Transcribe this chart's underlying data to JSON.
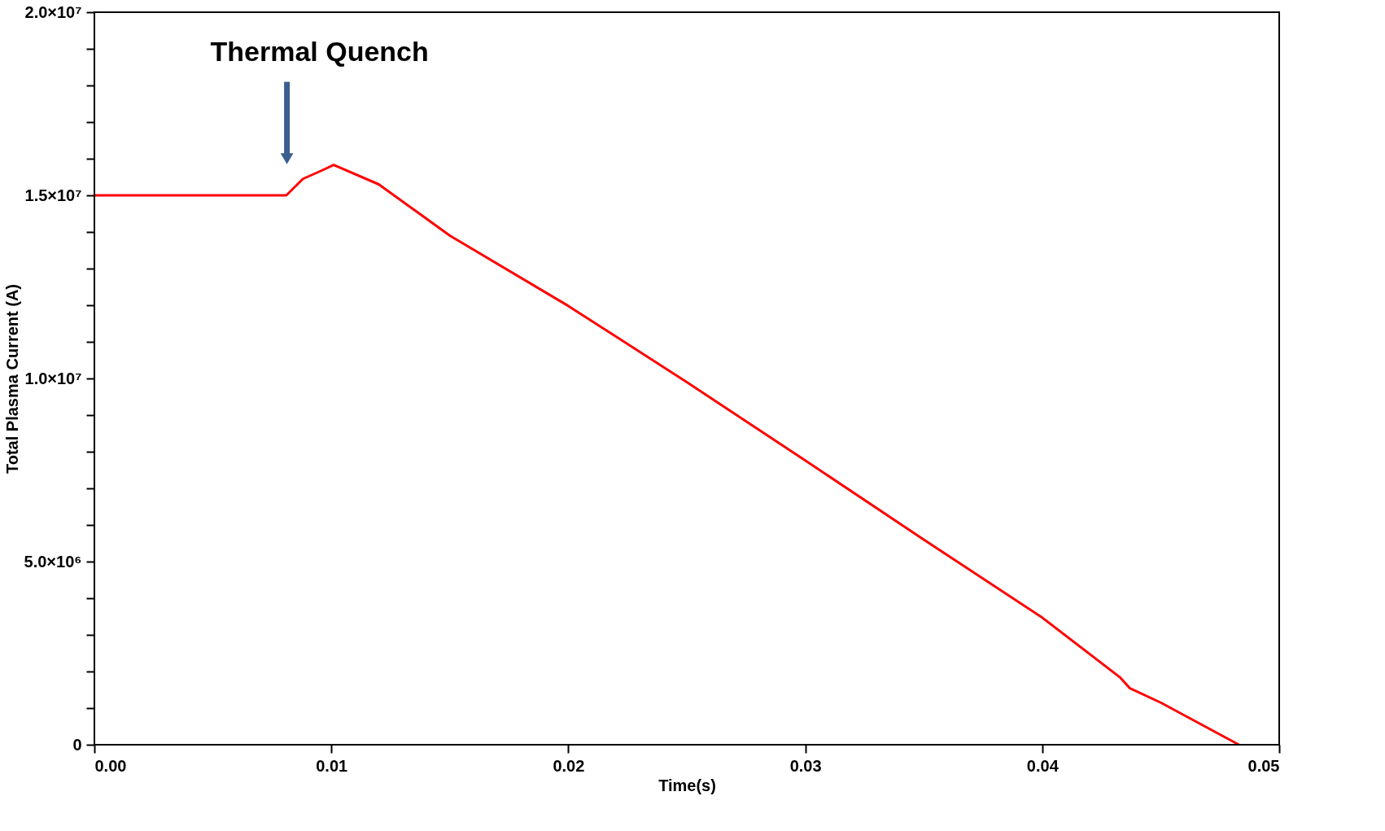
{
  "chart_data": {
    "type": "line",
    "xlabel": "Time(s)",
    "ylabel": "Total Plasma Current (A)",
    "x": [
      0,
      0.0081,
      0.0088,
      0.0095,
      0.0101,
      0.012,
      0.015,
      0.02,
      0.025,
      0.03,
      0.035,
      0.04,
      0.0433,
      0.0437,
      0.045,
      0.0483
    ],
    "series": [
      {
        "color": "#ff0000",
        "values": [
          15000000,
          15000000,
          15450000,
          15650000,
          15830000,
          15300000,
          13900000,
          11980000,
          9900000,
          7760000,
          5600000,
          3470000,
          1830000,
          1540000,
          1150000,
          0
        ]
      }
    ],
    "xlim": [
      0,
      0.05
    ],
    "ylim": [
      0,
      20000000
    ],
    "xticks": [
      {
        "value": 0,
        "label": "0.00"
      },
      {
        "value": 0.01,
        "label": "0.01"
      },
      {
        "value": 0.02,
        "label": "0.02"
      },
      {
        "value": 0.03,
        "label": "0.03"
      },
      {
        "value": 0.04,
        "label": "0.04"
      },
      {
        "value": 0.05,
        "label": "0.05"
      }
    ],
    "yticks": [
      0,
      {
        "value": 1000000,
        "label": null
      },
      {
        "value": 2000000,
        "label": null
      },
      {
        "value": 3000000,
        "label": null
      },
      {
        "value": 4000000,
        "label": null
      },
      {
        "value": 5000000,
        "label": "5.0×10⁶"
      },
      {
        "value": 6000000,
        "label": null
      },
      {
        "value": 7000000,
        "label": null
      },
      {
        "value": 8000000,
        "label": null
      },
      {
        "value": 9000000,
        "label": null
      },
      {
        "value": 10000000,
        "label": "1.0×10⁷"
      },
      {
        "value": 11000000,
        "label": null
      },
      {
        "value": 12000000,
        "label": null
      },
      {
        "value": 13000000,
        "label": null
      },
      {
        "value": 14000000,
        "label": null
      },
      {
        "value": 15000000,
        "label": "1.5×10⁷"
      },
      {
        "value": 16000000,
        "label": null
      },
      {
        "value": 17000000,
        "label": null
      },
      {
        "value": 18000000,
        "label": null
      },
      {
        "value": 19000000,
        "label": null
      },
      {
        "value": 20000000,
        "label": "2.0×10⁷"
      }
    ],
    "annotations": [
      "Thermal Quench"
    ],
    "grid": false,
    "line_style": "solid",
    "marker": "none"
  }
}
